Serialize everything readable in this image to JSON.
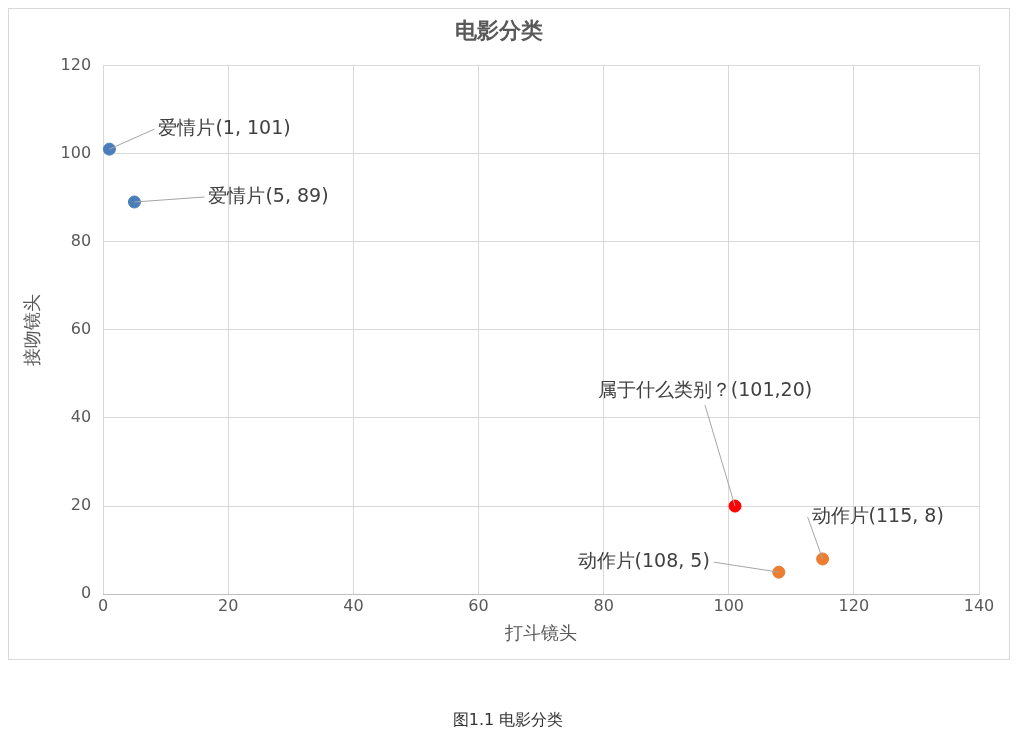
{
  "chart_data": {
    "type": "scatter",
    "title": "电影分类",
    "xlabel": "打斗镜头",
    "ylabel": "接吻镜头",
    "series": [
      {
        "color": "#4a7ebb",
        "x": [
          1,
          5
        ],
        "values": [
          101,
          89
        ]
      },
      {
        "color": "#ff0000",
        "x": [
          101
        ],
        "values": [
          20
        ]
      },
      {
        "color": "#ed7d31",
        "x": [
          108,
          115
        ],
        "values": [
          5,
          8
        ]
      }
    ],
    "xlim": [
      0,
      140
    ],
    "xticks": [
      0,
      20,
      40,
      60,
      80,
      100,
      120,
      140
    ],
    "ylim": [
      0,
      120
    ],
    "yticks": [
      0,
      20,
      40,
      60,
      80,
      100,
      120
    ],
    "grid": true,
    "legend": false,
    "marker": "circle",
    "annotations": [
      {
        "text": "爱情片(1, 101)",
        "x": 1,
        "y": 101
      },
      {
        "text": "爱情片(5, 89)",
        "x": 5,
        "y": 89
      },
      {
        "text": "属于什么类别？(101,20)",
        "x": 101,
        "y": 20
      },
      {
        "text": "动作片(108, 5)",
        "x": 108,
        "y": 5
      },
      {
        "text": "动作片(115, 8)",
        "x": 115,
        "y": 8
      },
      "图1.1 电影分类"
    ]
  }
}
